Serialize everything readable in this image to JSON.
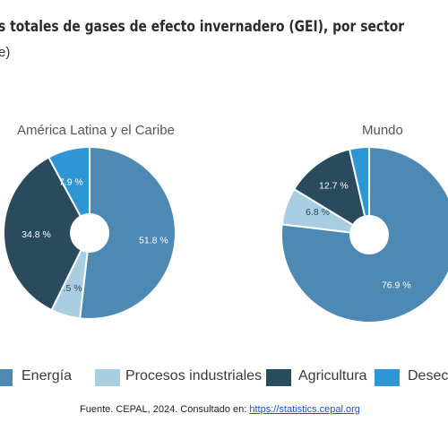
{
  "title": "s totales de gases de efecto invernadero (GEI), por sector",
  "subtitle": "e)",
  "colors": {
    "energia": "#4d89b2",
    "procesos": "#a9cde1",
    "agricultura": "#2a4a5e",
    "desechos": "#2e96d4"
  },
  "legend": [
    {
      "label": "Energía",
      "color": "#4d89b2"
    },
    {
      "label": "Procesos industriales",
      "color": "#a9cde1"
    },
    {
      "label": "Agricultura",
      "color": "#2a4a5e"
    },
    {
      "label": "Desech",
      "color": "#2e96d4"
    }
  ],
  "chart_data": [
    {
      "type": "pie",
      "title": "América Latina y el Caribe",
      "categories": [
        "Energía",
        "Procesos industriales",
        "Agricultura",
        "Desechos"
      ],
      "values": [
        51.8,
        5.5,
        34.8,
        7.9
      ],
      "labels": [
        "51.8 %",
        "5.5 %",
        "34.8 %",
        "7.9 %"
      ],
      "colors": [
        "#4d89b2",
        "#a9cde1",
        "#2a4a5e",
        "#2e96d4"
      ],
      "donut": true
    },
    {
      "type": "pie",
      "title": "Mundo",
      "categories": [
        "Energía",
        "Procesos industriales",
        "Agricultura",
        "Desechos"
      ],
      "values": [
        76.9,
        6.8,
        12.7,
        3.6
      ],
      "labels": [
        "76.9 %",
        "6.8 %",
        "12.7 %",
        ""
      ],
      "colors": [
        "#4d89b2",
        "#a9cde1",
        "#2a4a5e",
        "#2e96d4"
      ],
      "donut": true
    }
  ],
  "source": {
    "text": "Fuente. CEPAL, 2024. Consultado en: ",
    "link": "https://statistics.cepal.org"
  }
}
